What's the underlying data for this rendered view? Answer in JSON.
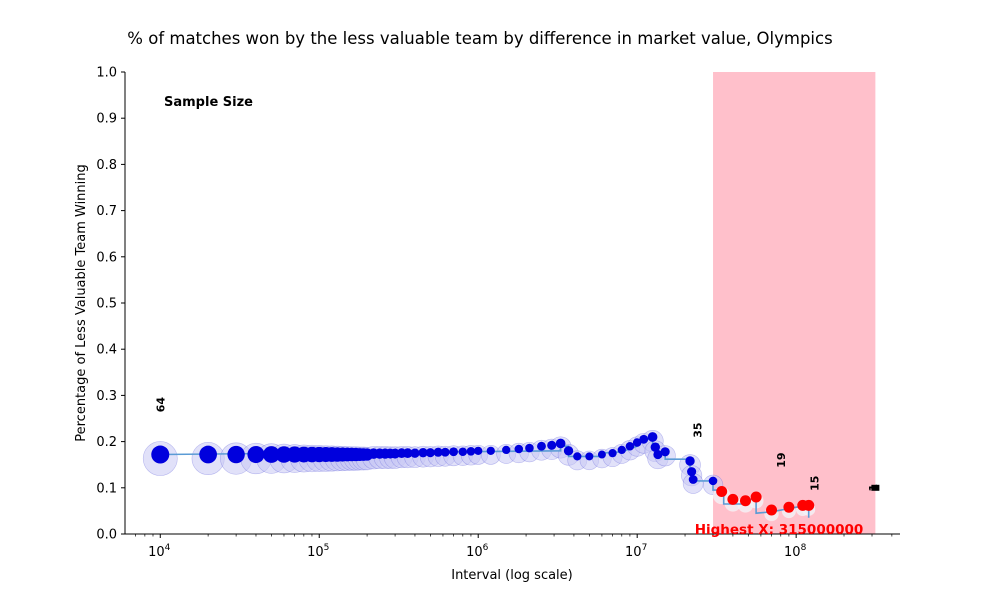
{
  "chart_data": {
    "type": "scatter",
    "title": "% of matches won by the less valuable team by difference in market value, Olympics",
    "xlabel": "Interval (log scale)",
    "ylabel": "Percentage of Less Valuable Team Winning",
    "xscale": "log",
    "xlim": [
      6000,
      450000000
    ],
    "ylim": [
      0,
      1.0
    ],
    "yticks": [
      "0.0",
      "0.1",
      "0.2",
      "0.3",
      "0.4",
      "0.5",
      "0.6",
      "0.7",
      "0.8",
      "0.9",
      "1.0"
    ],
    "xticks": [
      {
        "value": 10000,
        "base": "10",
        "exp": "4"
      },
      {
        "value": 100000,
        "base": "10",
        "exp": "5"
      },
      {
        "value": 1000000,
        "base": "10",
        "exp": "6"
      },
      {
        "value": 10000000,
        "base": "10",
        "exp": "7"
      },
      {
        "value": 100000000,
        "base": "10",
        "exp": "8"
      }
    ],
    "sample_size_heading": "Sample Size",
    "highlight_region": {
      "x0": 30000000,
      "x1": 315000000,
      "color": "#ffc0cb"
    },
    "highest_x_label": "Highest X: 315000000",
    "sample_labels": [
      {
        "x": 10000,
        "y": 0.28,
        "text": "64"
      },
      {
        "x": 24000000,
        "y": 0.225,
        "text": "35"
      },
      {
        "x": 80000000,
        "y": 0.16,
        "text": "19"
      },
      {
        "x": 130000000,
        "y": 0.11,
        "text": "15"
      },
      {
        "x": 305000000,
        "y": 0.1,
        "text": "1"
      }
    ],
    "step_line": [
      [
        10000,
        0.172
      ],
      [
        3300000,
        0.18
      ],
      [
        3300000,
        0.19
      ],
      [
        3700000,
        0.19
      ],
      [
        3700000,
        0.168
      ],
      [
        6000000,
        0.168
      ],
      [
        6000000,
        0.175
      ],
      [
        8000000,
        0.178
      ],
      [
        10000000,
        0.19
      ],
      [
        10500000,
        0.205
      ],
      [
        12500000,
        0.205
      ],
      [
        12500000,
        0.195
      ],
      [
        13500000,
        0.195
      ],
      [
        13500000,
        0.175
      ],
      [
        15000000,
        0.175
      ],
      [
        15000000,
        0.162
      ],
      [
        21500000,
        0.162
      ],
      [
        21500000,
        0.14
      ],
      [
        22500000,
        0.14
      ],
      [
        22500000,
        0.115
      ],
      [
        30000000,
        0.115
      ],
      [
        30000000,
        0.095
      ],
      [
        35000000,
        0.095
      ],
      [
        35000000,
        0.065
      ],
      [
        48000000,
        0.065
      ],
      [
        48000000,
        0.075
      ],
      [
        56000000,
        0.075
      ],
      [
        56000000,
        0.045
      ],
      [
        70000000,
        0.048
      ],
      [
        100000000,
        0.058
      ],
      [
        120000000,
        0.062
      ],
      [
        120000000,
        0.035
      ]
    ],
    "series": [
      {
        "color": "#0000dd",
        "points": [
          [
            10000,
            0.172,
            64
          ],
          [
            20000,
            0.172,
            60
          ],
          [
            30000,
            0.172,
            58
          ],
          [
            40000,
            0.172,
            56
          ],
          [
            50000,
            0.172,
            54
          ],
          [
            60000,
            0.172,
            52
          ],
          [
            70000,
            0.172,
            50
          ],
          [
            80000,
            0.172,
            48
          ],
          [
            90000,
            0.172,
            47
          ],
          [
            100000,
            0.172,
            46
          ],
          [
            110000,
            0.172,
            45
          ],
          [
            120000,
            0.172,
            44
          ],
          [
            130000,
            0.172,
            43
          ],
          [
            140000,
            0.172,
            42
          ],
          [
            150000,
            0.172,
            41
          ],
          [
            160000,
            0.172,
            40
          ],
          [
            170000,
            0.172,
            40
          ],
          [
            180000,
            0.172,
            39
          ],
          [
            190000,
            0.172,
            39
          ],
          [
            200000,
            0.172,
            38
          ],
          [
            220000,
            0.174,
            38
          ],
          [
            240000,
            0.174,
            37
          ],
          [
            260000,
            0.174,
            37
          ],
          [
            280000,
            0.174,
            36
          ],
          [
            300000,
            0.174,
            36
          ],
          [
            330000,
            0.175,
            35
          ],
          [
            360000,
            0.175,
            35
          ],
          [
            400000,
            0.175,
            34
          ],
          [
            450000,
            0.176,
            34
          ],
          [
            500000,
            0.176,
            33
          ],
          [
            560000,
            0.177,
            33
          ],
          [
            620000,
            0.177,
            32
          ],
          [
            700000,
            0.178,
            32
          ],
          [
            800000,
            0.178,
            31
          ],
          [
            900000,
            0.179,
            31
          ],
          [
            1000000,
            0.18,
            30
          ],
          [
            1200000,
            0.18,
            30
          ],
          [
            1500000,
            0.182,
            30
          ],
          [
            1800000,
            0.184,
            31
          ],
          [
            2100000,
            0.186,
            31
          ],
          [
            2500000,
            0.19,
            32
          ],
          [
            2900000,
            0.192,
            33
          ],
          [
            3300000,
            0.196,
            35
          ],
          [
            3700000,
            0.18,
            34
          ],
          [
            4200000,
            0.168,
            30
          ],
          [
            5000000,
            0.168,
            29
          ],
          [
            6000000,
            0.172,
            29
          ],
          [
            7000000,
            0.175,
            30
          ],
          [
            8000000,
            0.182,
            30
          ],
          [
            9000000,
            0.19,
            31
          ],
          [
            10000000,
            0.198,
            31
          ],
          [
            11000000,
            0.205,
            32
          ],
          [
            12500000,
            0.21,
            35
          ],
          [
            13000000,
            0.188,
            34
          ],
          [
            13500000,
            0.172,
            33
          ],
          [
            15000000,
            0.178,
            33
          ],
          [
            21500000,
            0.158,
            34
          ],
          [
            22000000,
            0.135,
            33
          ],
          [
            22500000,
            0.118,
            32
          ],
          [
            30000000,
            0.115,
            31
          ]
        ]
      },
      {
        "color": "#ff0000",
        "points": [
          [
            34000000,
            0.092,
            25
          ],
          [
            40000000,
            0.075,
            23
          ],
          [
            48000000,
            0.072,
            21
          ],
          [
            56000000,
            0.08,
            19
          ],
          [
            70000000,
            0.052,
            18
          ],
          [
            90000000,
            0.058,
            17
          ],
          [
            110000000,
            0.062,
            16
          ],
          [
            120000000,
            0.062,
            15
          ]
        ]
      }
    ],
    "dark_marker": {
      "x": 315000000,
      "y": 0.1
    }
  }
}
